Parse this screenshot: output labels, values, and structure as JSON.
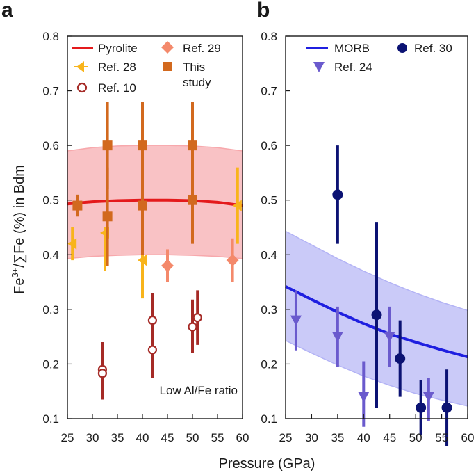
{
  "figure": {
    "xlabel": "Pressure (GPa)",
    "ylabel_prefix": "Fe",
    "ylabel_sup": "3+",
    "ylabel_suffix": "/∑Fe (%) in Bdm"
  },
  "colors": {
    "pyrolite": "#e41a1c",
    "pyrolite_band": "#f7a8ac",
    "ref28": "#f8b41b",
    "ref10": "#a52a26",
    "ref29": "#f4896b",
    "this_study": "#d2691e",
    "morb": "#1f1fe0",
    "morb_band": "#b3b3f5",
    "ref24": "#6a5acd",
    "ref30": "#0b1273"
  },
  "chart_data": [
    {
      "panel": "a",
      "type": "scatter",
      "xlim": [
        25,
        60
      ],
      "ylim": [
        0.1,
        0.8
      ],
      "xticks": [
        "25",
        "30",
        "35",
        "40",
        "45",
        "50",
        "55",
        "60"
      ],
      "yticks": [
        "0.1",
        "0.2",
        "0.3",
        "0.4",
        "0.5",
        "0.6",
        "0.7",
        "0.8"
      ],
      "annotation": "Low Al/Fe ratio",
      "legend": [
        "Pyrolite",
        "Ref. 28",
        "Ref. 10",
        "Ref. 29",
        "This study"
      ],
      "legend_study_line1": "This",
      "legend_study_line2": "study",
      "pyrolite_line": {
        "x": [
          25,
          30,
          35,
          40,
          45,
          50,
          55,
          60
        ],
        "y": [
          0.493,
          0.497,
          0.499,
          0.5,
          0.5,
          0.499,
          0.496,
          0.49
        ]
      },
      "pyrolite_band": {
        "x": [
          25,
          30,
          35,
          40,
          45,
          50,
          55,
          60
        ],
        "lower": [
          0.393,
          0.397,
          0.399,
          0.4,
          0.4,
          0.399,
          0.397,
          0.393
        ],
        "upper": [
          0.59,
          0.596,
          0.599,
          0.6,
          0.6,
          0.599,
          0.596,
          0.59
        ]
      },
      "series": [
        {
          "name": "Ref. 28",
          "marker": "triangle-left",
          "points": [
            {
              "x": 26,
              "y": 0.42,
              "lo": 0.39,
              "hi": 0.45
            },
            {
              "x": 32.5,
              "y": 0.44,
              "lo": 0.37,
              "hi": 0.45
            },
            {
              "x": 40,
              "y": 0.39,
              "lo": 0.32,
              "hi": 0.41
            },
            {
              "x": 59,
              "y": 0.49,
              "lo": 0.42,
              "hi": 0.56
            }
          ]
        },
        {
          "name": "Ref. 10",
          "marker": "circle-open",
          "points": [
            {
              "x": 32,
              "y": 0.19,
              "lo": 0.135,
              "hi": 0.24
            },
            {
              "x": 32,
              "y": 0.183,
              "lo": 0.135,
              "hi": 0.24
            },
            {
              "x": 42,
              "y": 0.28,
              "lo": 0.23,
              "hi": 0.33
            },
            {
              "x": 42,
              "y": 0.226,
              "lo": 0.175,
              "hi": 0.275
            },
            {
              "x": 50,
              "y": 0.268,
              "lo": 0.22,
              "hi": 0.318
            },
            {
              "x": 51,
              "y": 0.285,
              "lo": 0.235,
              "hi": 0.335
            }
          ]
        },
        {
          "name": "Ref. 29",
          "marker": "diamond",
          "points": [
            {
              "x": 45,
              "y": 0.38,
              "lo": 0.35,
              "hi": 0.41
            },
            {
              "x": 58,
              "y": 0.39,
              "lo": 0.35,
              "hi": 0.43
            }
          ]
        },
        {
          "name": "This study",
          "marker": "square",
          "points": [
            {
              "x": 27,
              "y": 0.49,
              "lo": 0.47,
              "hi": 0.51
            },
            {
              "x": 33,
              "y": 0.47,
              "lo": 0.38,
              "hi": 0.56
            },
            {
              "x": 33,
              "y": 0.6,
              "lo": 0.52,
              "hi": 0.68
            },
            {
              "x": 40,
              "y": 0.49,
              "lo": 0.4,
              "hi": 0.58
            },
            {
              "x": 40,
              "y": 0.6,
              "lo": 0.52,
              "hi": 0.68
            },
            {
              "x": 50,
              "y": 0.5,
              "lo": 0.42,
              "hi": 0.58
            },
            {
              "x": 50,
              "y": 0.6,
              "lo": 0.52,
              "hi": 0.68
            }
          ]
        }
      ]
    },
    {
      "panel": "b",
      "type": "scatter",
      "xlim": [
        25,
        60
      ],
      "ylim": [
        0.1,
        0.8
      ],
      "xticks": [
        "25",
        "30",
        "35",
        "40",
        "45",
        "50",
        "55",
        "60"
      ],
      "yticks": [
        "0.1",
        "0.2",
        "0.3",
        "0.4",
        "0.5",
        "0.6",
        "0.7",
        "0.8"
      ],
      "legend": [
        "MORB",
        "Ref. 24",
        "Ref. 30"
      ],
      "morb_line": {
        "x": [
          25,
          30,
          35,
          40,
          45,
          50,
          55,
          60
        ],
        "y": [
          0.342,
          0.318,
          0.295,
          0.274,
          0.255,
          0.24,
          0.226,
          0.213
        ]
      },
      "morb_band": {
        "x": [
          25,
          30,
          35,
          40,
          45,
          50,
          55,
          60
        ],
        "lower": [
          0.243,
          0.22,
          0.198,
          0.178,
          0.161,
          0.146,
          0.134,
          0.123
        ],
        "upper": [
          0.443,
          0.418,
          0.393,
          0.37,
          0.349,
          0.33,
          0.313,
          0.298
        ]
      },
      "series": [
        {
          "name": "Ref. 24",
          "marker": "triangle-down",
          "points": [
            {
              "x": 27,
              "y": 0.28,
              "lo": 0.225,
              "hi": 0.335
            },
            {
              "x": 35,
              "y": 0.25,
              "lo": 0.195,
              "hi": 0.305
            },
            {
              "x": 40,
              "y": 0.14,
              "lo": 0.085,
              "hi": 0.205
            },
            {
              "x": 45,
              "y": 0.25,
              "lo": 0.195,
              "hi": 0.305
            },
            {
              "x": 52.5,
              "y": 0.14,
              "lo": 0.095,
              "hi": 0.175
            }
          ]
        },
        {
          "name": "Ref. 30",
          "marker": "circle",
          "points": [
            {
              "x": 35,
              "y": 0.51,
              "lo": 0.42,
              "hi": 0.6
            },
            {
              "x": 42.5,
              "y": 0.29,
              "lo": 0.12,
              "hi": 0.46
            },
            {
              "x": 47,
              "y": 0.21,
              "lo": 0.14,
              "hi": 0.28
            },
            {
              "x": 51,
              "y": 0.12,
              "lo": 0.07,
              "hi": 0.17
            },
            {
              "x": 56,
              "y": 0.12,
              "lo": 0.05,
              "hi": 0.19
            }
          ]
        }
      ]
    }
  ]
}
